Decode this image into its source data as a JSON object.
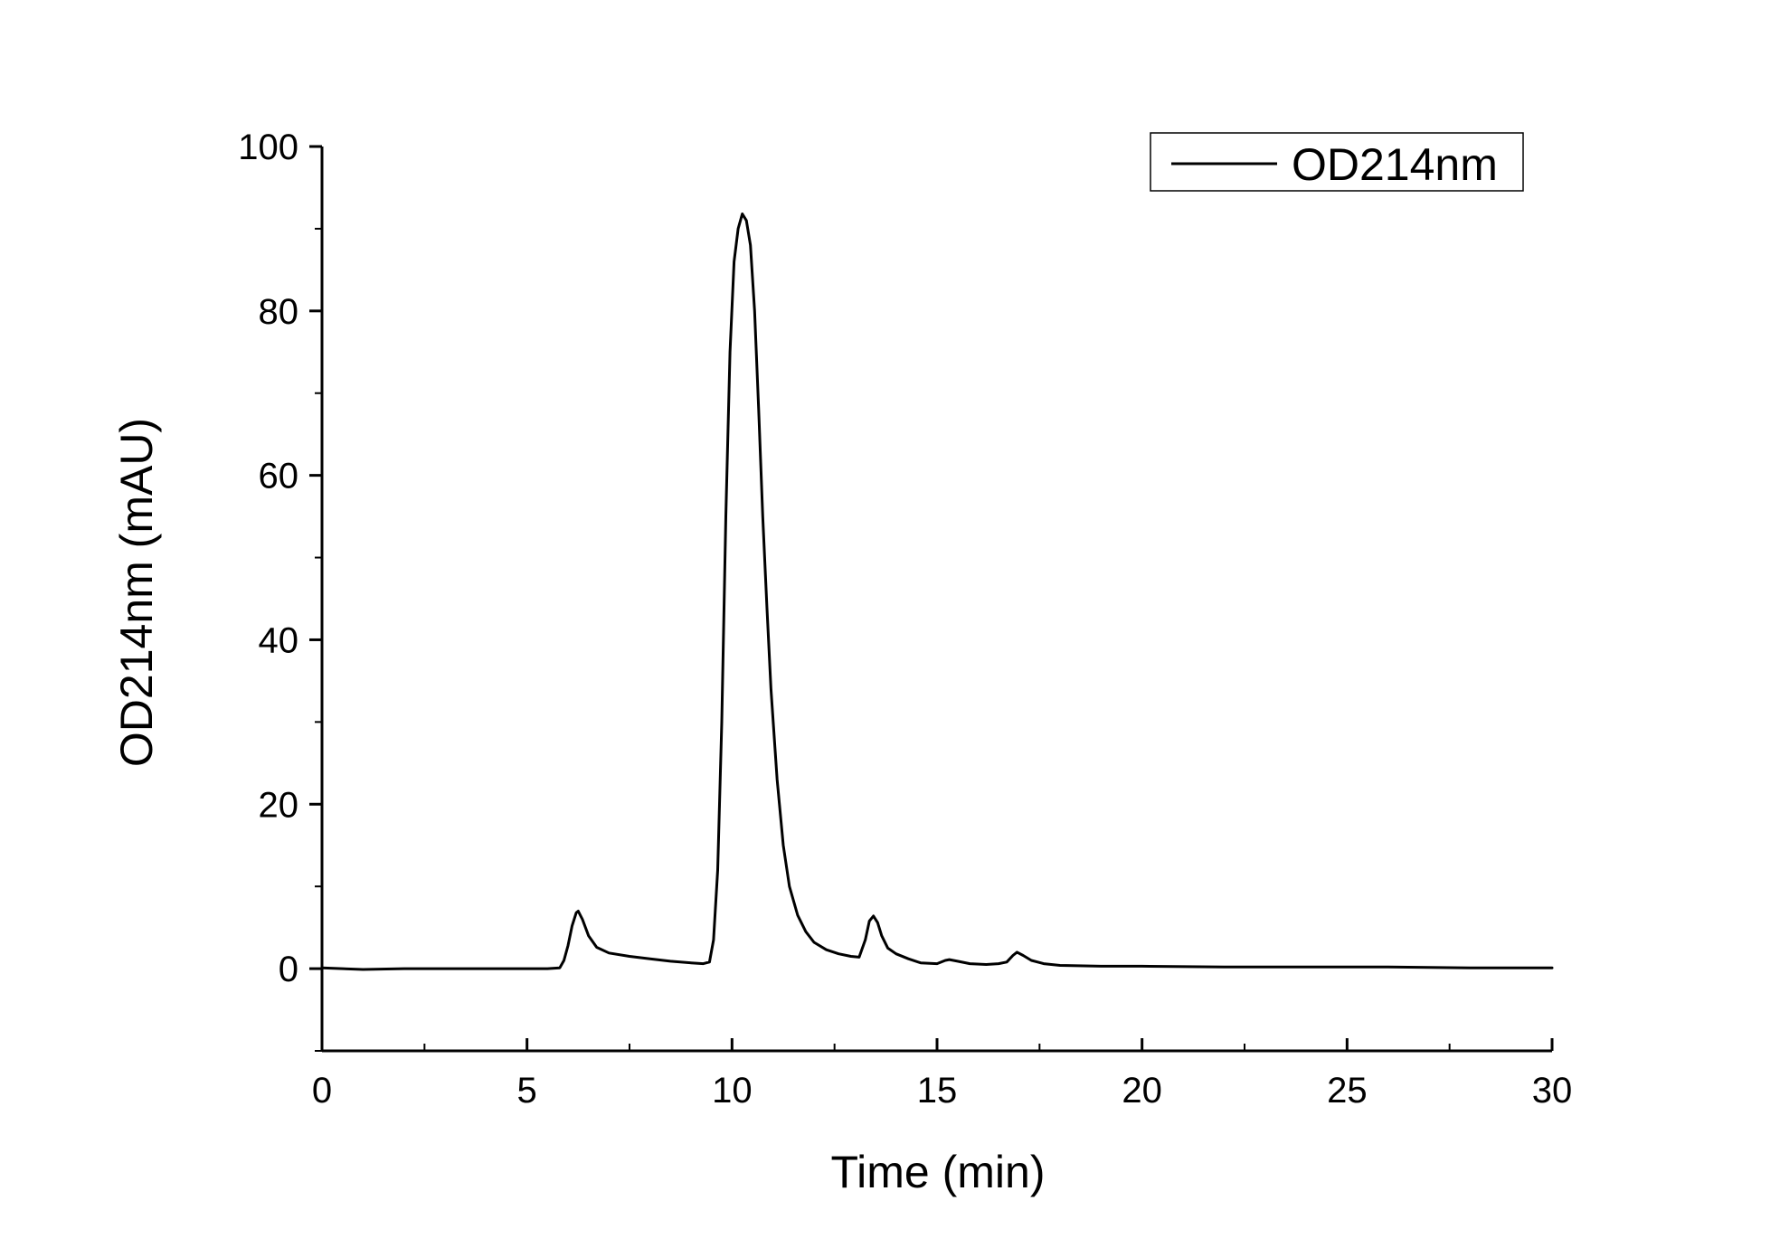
{
  "chart_data": {
    "type": "line",
    "title": "",
    "xlabel": "Time (min)",
    "ylabel": "OD214nm (mAU)",
    "xlim": [
      0,
      30
    ],
    "ylim": [
      -10,
      100
    ],
    "x_ticks": [
      0,
      5,
      10,
      15,
      20,
      25,
      30
    ],
    "x_tick_labels": [
      "0",
      "5",
      "10",
      "15",
      "20",
      "25",
      "30"
    ],
    "y_ticks": [
      0,
      20,
      40,
      60,
      80,
      100
    ],
    "y_tick_labels": [
      "0",
      "20",
      "40",
      "60",
      "80",
      "100"
    ],
    "grid": false,
    "legend": {
      "position": "top-right",
      "entries": [
        "OD214nm"
      ]
    },
    "colors": {
      "line": "#000000",
      "axis": "#000000",
      "background": "#ffffff"
    },
    "series": [
      {
        "name": "OD214nm",
        "x": [
          0,
          0.5,
          1,
          2,
          3,
          4,
          5,
          5.5,
          5.8,
          5.9,
          6.0,
          6.1,
          6.2,
          6.25,
          6.35,
          6.5,
          6.7,
          7.0,
          7.5,
          8,
          8.5,
          9,
          9.3,
          9.45,
          9.55,
          9.65,
          9.75,
          9.85,
          9.95,
          10.05,
          10.15,
          10.25,
          10.35,
          10.45,
          10.55,
          10.65,
          10.75,
          10.85,
          10.95,
          11.1,
          11.25,
          11.4,
          11.6,
          11.8,
          12.0,
          12.3,
          12.6,
          12.9,
          13.1,
          13.25,
          13.35,
          13.45,
          13.55,
          13.65,
          13.8,
          14.0,
          14.3,
          14.6,
          15.0,
          15.2,
          15.3,
          15.5,
          15.8,
          16.2,
          16.5,
          16.7,
          16.85,
          16.95,
          17.1,
          17.3,
          17.6,
          18,
          19,
          20,
          22,
          24,
          26,
          28,
          30
        ],
        "values": [
          0.1,
          0.0,
          -0.1,
          0.0,
          0.0,
          0.0,
          0.0,
          0.0,
          0.1,
          1.0,
          2.8,
          5.2,
          6.8,
          7.0,
          6.0,
          4.0,
          2.6,
          1.9,
          1.5,
          1.2,
          0.9,
          0.7,
          0.6,
          0.8,
          3.5,
          12.0,
          30.0,
          55.0,
          75.0,
          86.0,
          90.0,
          91.8,
          91.0,
          88.0,
          80.0,
          68.0,
          55.0,
          44.0,
          34.0,
          23.0,
          15.0,
          10.0,
          6.5,
          4.5,
          3.2,
          2.3,
          1.8,
          1.5,
          1.4,
          3.5,
          5.8,
          6.4,
          5.6,
          4.0,
          2.5,
          1.8,
          1.2,
          0.7,
          0.6,
          1.0,
          1.1,
          0.9,
          0.6,
          0.5,
          0.6,
          0.8,
          1.6,
          2.0,
          1.6,
          1.0,
          0.6,
          0.4,
          0.3,
          0.3,
          0.2,
          0.2,
          0.2,
          0.1,
          0.1
        ]
      }
    ]
  }
}
